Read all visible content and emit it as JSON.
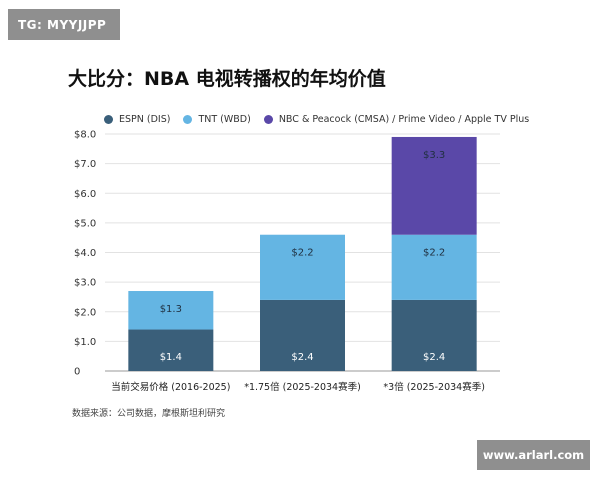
{
  "watermark_top": "TG: MYYJJPP",
  "watermark_bottom": "www.arlarl.com",
  "source_note": "数据来源：公司数据，摩根斯坦利研究",
  "chart_data": {
    "type": "bar",
    "stacked": true,
    "title": "大比分：NBA 电视转播权的年均价值",
    "categories": [
      "当前交易价格 (2016-2025)",
      "*1.75倍 (2025-2034赛季)",
      "*3倍 (2025-2034赛季)"
    ],
    "series": [
      {
        "name": "ESPN (DIS)",
        "color": "#3a5f7a",
        "values": [
          1.4,
          2.4,
          2.4
        ],
        "labels": [
          "$1.4",
          "$2.4",
          "$2.4"
        ]
      },
      {
        "name": "TNT (WBD)",
        "color": "#64b5e3",
        "values": [
          1.3,
          2.2,
          2.2
        ],
        "labels": [
          "$1.3",
          "$2.2",
          "$2.2"
        ]
      },
      {
        "name": "NBC & Peacock (CMSA) / Prime Video / Apple TV Plus",
        "color": "#5a48a8",
        "values": [
          0,
          0,
          3.3
        ],
        "labels": [
          "",
          "",
          "$3.3"
        ]
      }
    ],
    "yticks": [
      0,
      1,
      2,
      3,
      4,
      5,
      6,
      7,
      8
    ],
    "ytick_labels": [
      "0",
      "$1.0",
      "$2.0",
      "$3.0",
      "$4.0",
      "$5.0",
      "$6.0",
      "$7.0",
      "$8.0"
    ],
    "ylim": [
      0,
      8
    ],
    "grid": true,
    "legend": "top-left"
  }
}
